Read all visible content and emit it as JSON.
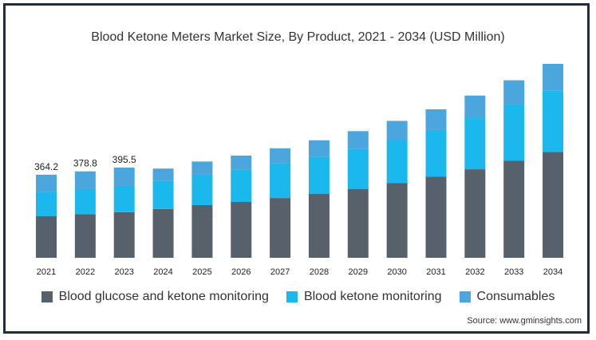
{
  "chart_data": {
    "type": "bar",
    "stacked": true,
    "title": "Blood Ketone Meters Market Size, By Product, 2021 - 2034 (USD Million)",
    "xlabel": "",
    "ylabel": "",
    "categories": [
      "2021",
      "2022",
      "2023",
      "2024",
      "2025",
      "2026",
      "2027",
      "2028",
      "2029",
      "2030",
      "2031",
      "2032",
      "2033",
      "2034"
    ],
    "series": [
      {
        "name": "Blood glucose and ketone monitoring",
        "color": "#56616b",
        "values": [
          183,
          191,
          200,
          214,
          231,
          245,
          262,
          281,
          302,
          327,
          355,
          388,
          425,
          464
        ]
      },
      {
        "name": "Blood ketone monitoring",
        "color": "#1ab8ec",
        "values": [
          106,
          110,
          115,
          123,
          133,
          141,
          152,
          162,
          175,
          189,
          205,
          224,
          245,
          268
        ]
      },
      {
        "name": "Consumables",
        "color": "#4aa6dc",
        "values": [
          75.2,
          77.8,
          80.5,
          54,
          58,
          62,
          66,
          72,
          78,
          84,
          91,
          99,
          108,
          118
        ]
      }
    ],
    "totals_labeled": [
      "364.2",
      "378.8",
      "395.5"
    ],
    "ylim": [
      0,
      920
    ],
    "grid": false,
    "legend": "bottom",
    "source": "Source: www.gminsights.com"
  }
}
